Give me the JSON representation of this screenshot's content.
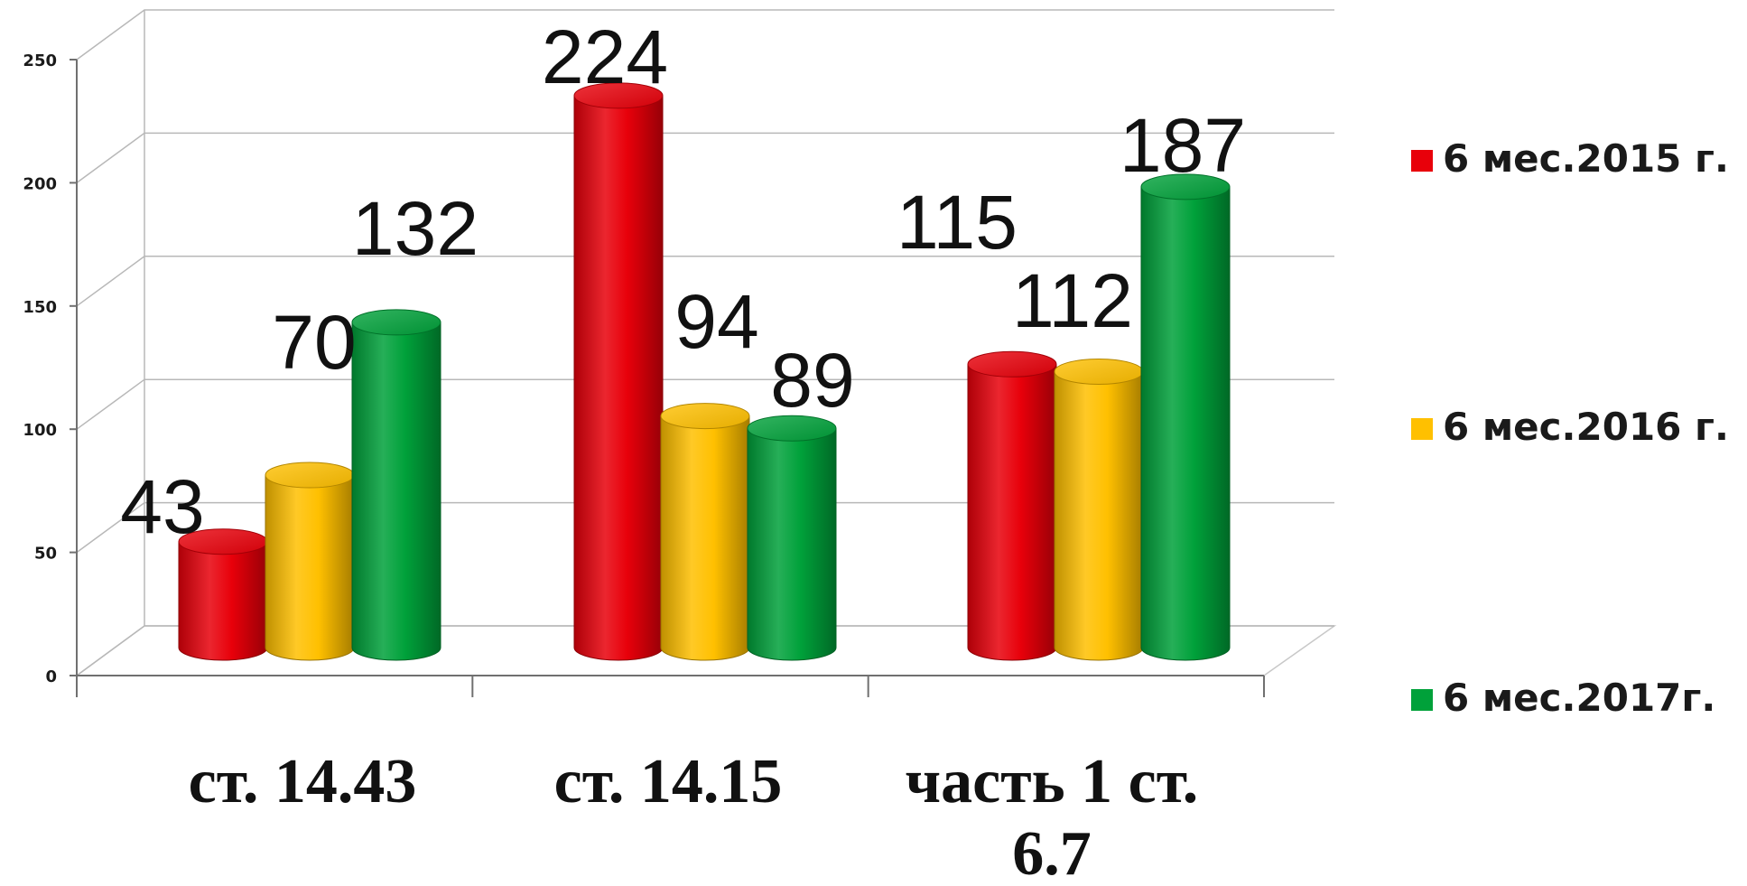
{
  "chart_data": {
    "type": "bar",
    "style": "3d-cylinder",
    "categories": [
      "ст. 14.43",
      "ст. 14.15",
      "часть 1 ст. 6.7"
    ],
    "category_lines": [
      [
        "ст. 14.43"
      ],
      [
        "ст. 14.15"
      ],
      [
        "часть 1 ст.",
        "6.7"
      ]
    ],
    "series": [
      {
        "name": "6 мес.2015 г.",
        "values": [
          43,
          224,
          115
        ],
        "color": "#e8000a"
      },
      {
        "name": "6 мес.2016 г.",
        "values": [
          70,
          94,
          112
        ],
        "color": "#ffc000"
      },
      {
        "name": "6 мес.2017г.",
        "values": [
          132,
          89,
          187
        ],
        "color": "#00a13a"
      }
    ],
    "yticks": [
      0,
      50,
      100,
      150,
      200,
      250
    ],
    "ylim": [
      0,
      250
    ],
    "grid": true,
    "legend_position": "right",
    "title": "",
    "xlabel": "",
    "ylabel": ""
  }
}
